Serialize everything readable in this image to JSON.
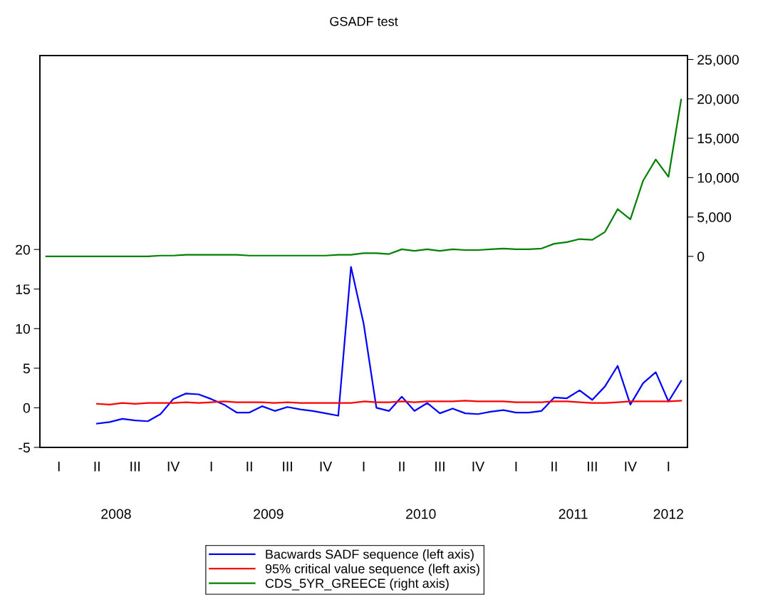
{
  "chart_data": {
    "type": "line",
    "title": "GSADF test",
    "categories": [
      null,
      "I",
      null,
      null,
      "II",
      null,
      null,
      "III",
      null,
      null,
      "IV",
      null,
      null,
      "I",
      null,
      null,
      "II",
      null,
      null,
      "III",
      null,
      null,
      "IV",
      null,
      null,
      "I",
      null,
      null,
      "II",
      null,
      null,
      "III",
      null,
      null,
      "IV",
      null,
      null,
      "I",
      null,
      null,
      "II",
      null,
      null,
      "III",
      null,
      null,
      "IV",
      null,
      null,
      "I",
      null
    ],
    "series": [
      {
        "name": "Bacwards SADF sequence (left axis)",
        "color": "#0000ff",
        "values": [
          null,
          null,
          null,
          null,
          -2.0,
          -1.8,
          -1.4,
          -1.6,
          -1.7,
          -0.8,
          1.1,
          1.8,
          1.7,
          1.1,
          0.4,
          -0.6,
          -0.6,
          0.2,
          -0.4,
          0.1,
          -0.2,
          -0.4,
          -0.7,
          -1.0,
          17.8,
          10.6,
          0.0,
          -0.4,
          1.4,
          -0.4,
          0.6,
          -0.7,
          -0.1,
          -0.7,
          -0.8,
          -0.5,
          -0.3,
          -0.6,
          -0.6,
          -0.4,
          1.3,
          1.2,
          2.2,
          1.0,
          2.7,
          5.3,
          0.4,
          3.1,
          4.5,
          0.8,
          3.4
        ]
      },
      {
        "name": "95% critical value sequence (left axis)",
        "color": "#ff0000",
        "values": [
          null,
          null,
          null,
          null,
          0.5,
          0.4,
          0.6,
          0.5,
          0.6,
          0.6,
          0.6,
          0.7,
          0.6,
          0.7,
          0.8,
          0.7,
          0.7,
          0.7,
          0.6,
          0.7,
          0.6,
          0.6,
          0.6,
          0.6,
          0.6,
          0.8,
          0.7,
          0.7,
          0.8,
          0.7,
          0.8,
          0.8,
          0.8,
          0.9,
          0.8,
          0.8,
          0.8,
          0.7,
          0.7,
          0.7,
          0.8,
          0.8,
          0.7,
          0.6,
          0.6,
          0.7,
          0.8,
          0.8,
          0.8,
          0.8,
          0.9
        ]
      },
      {
        "name": "CDS_5YR_GREECE (right axis)",
        "color": "#008000",
        "axis": "y2",
        "values": [
          0,
          0,
          0,
          0,
          0,
          0,
          0,
          0,
          0,
          100,
          100,
          200,
          200,
          200,
          200,
          200,
          100,
          100,
          100,
          100,
          100,
          100,
          100,
          200,
          200,
          400,
          400,
          300,
          900,
          700,
          900,
          700,
          900,
          800,
          800,
          900,
          1000,
          900,
          900,
          1000,
          1600,
          1800,
          2200,
          2100,
          3100,
          6000,
          4700,
          9600,
          12300,
          10100,
          19900
        ]
      }
    ],
    "annotations": [
      "2008",
      "2009",
      "2010",
      "2011",
      "2012"
    ],
    "ylim": [
      -5,
      44.5
    ],
    "yticks": [
      -5,
      0,
      5,
      10,
      15,
      20
    ],
    "y2lim": [
      -24250,
      25500
    ],
    "y2ticks": [
      0,
      {
        "value": 5000,
        "label": "5,000"
      },
      {
        "value": 10000,
        "label": "10,000"
      },
      {
        "value": 15000,
        "label": "15,000"
      },
      {
        "value": 20000,
        "label": "20,000"
      },
      {
        "value": 25000,
        "label": "25,000"
      }
    ],
    "grid": false,
    "legend": "bottom"
  }
}
